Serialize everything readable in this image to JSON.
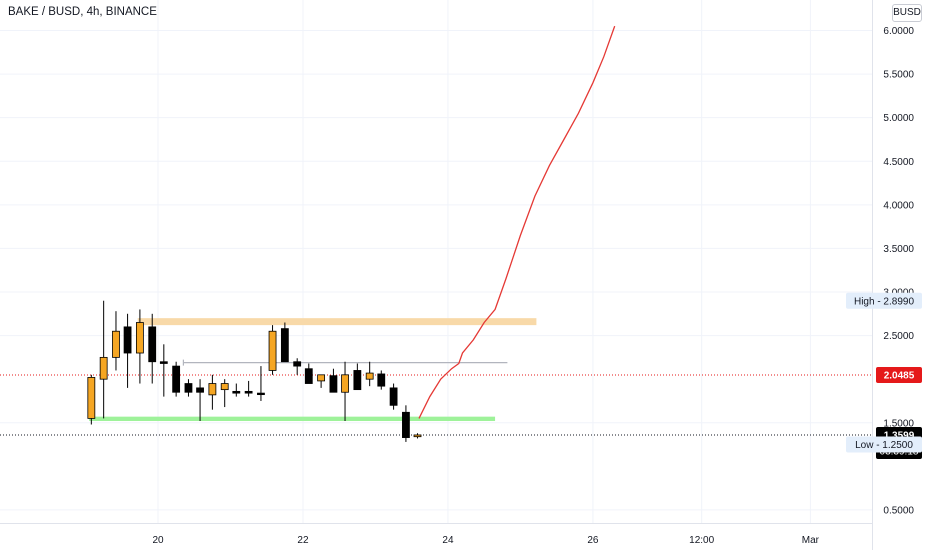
{
  "header": {
    "symbol_title": "BAKE / BUSD, 4h, BINANCE",
    "currency": "BUSD"
  },
  "colors": {
    "bull": "#f5a623",
    "bear": "#000000",
    "resistance_zone": "#f8d9a8",
    "support_zone": "#9ef29a",
    "forecast_line": "#e53935",
    "current_price_tag": "#e5191a",
    "last_price_tag": "#000000",
    "high_low_tag": "#e3eefb"
  },
  "chart_data": {
    "type": "candlestick",
    "title": "BAKE / BUSD, 4h, BINANCE",
    "y_axis": {
      "ticks": [
        "6.0000",
        "5.5000",
        "5.0000",
        "4.5000",
        "4.0000",
        "3.5000",
        "3.0000",
        "2.5000",
        "1.5000",
        "0.5000"
      ],
      "tick_values": [
        6.0,
        5.5,
        5.0,
        4.5,
        4.0,
        3.5,
        3.0,
        2.5,
        1.5,
        0.5
      ],
      "range": [
        0.35,
        6.35
      ]
    },
    "x_axis": {
      "ticks": [
        "20",
        "22",
        "24",
        "26",
        "12:00",
        "Mar"
      ],
      "tick_positions": [
        20,
        22,
        24,
        26,
        27.5,
        29
      ],
      "range": [
        17.82,
        29.85
      ]
    },
    "candles": [
      {
        "t": 19.08,
        "o": 1.55,
        "h": 2.05,
        "l": 1.48,
        "c": 2.02
      },
      {
        "t": 19.25,
        "o": 2.0,
        "h": 2.9,
        "l": 1.55,
        "c": 2.25
      },
      {
        "t": 19.42,
        "o": 2.25,
        "h": 2.78,
        "l": 2.1,
        "c": 2.55
      },
      {
        "t": 19.58,
        "o": 2.6,
        "h": 2.75,
        "l": 1.9,
        "c": 2.3
      },
      {
        "t": 19.75,
        "o": 2.3,
        "h": 2.8,
        "l": 1.95,
        "c": 2.65
      },
      {
        "t": 19.92,
        "o": 2.6,
        "h": 2.75,
        "l": 1.95,
        "c": 2.2
      },
      {
        "t": 20.08,
        "o": 2.2,
        "h": 2.4,
        "l": 1.8,
        "c": 2.18
      },
      {
        "t": 20.25,
        "o": 2.15,
        "h": 2.2,
        "l": 1.8,
        "c": 1.85
      },
      {
        "t": 20.42,
        "o": 1.95,
        "h": 2.0,
        "l": 1.8,
        "c": 1.85
      },
      {
        "t": 20.58,
        "o": 1.9,
        "h": 2.0,
        "l": 1.52,
        "c": 1.85
      },
      {
        "t": 20.75,
        "o": 1.82,
        "h": 2.05,
        "l": 1.65,
        "c": 1.95
      },
      {
        "t": 20.92,
        "o": 1.88,
        "h": 2.0,
        "l": 1.68,
        "c": 1.95
      },
      {
        "t": 21.08,
        "o": 1.86,
        "h": 1.95,
        "l": 1.8,
        "c": 1.84
      },
      {
        "t": 21.25,
        "o": 1.86,
        "h": 1.98,
        "l": 1.8,
        "c": 1.84
      },
      {
        "t": 21.42,
        "o": 1.84,
        "h": 2.15,
        "l": 1.75,
        "c": 1.83
      },
      {
        "t": 21.58,
        "o": 2.1,
        "h": 2.62,
        "l": 2.05,
        "c": 2.55
      },
      {
        "t": 21.75,
        "o": 2.58,
        "h": 2.65,
        "l": 2.2,
        "c": 2.2
      },
      {
        "t": 21.92,
        "o": 2.2,
        "h": 2.24,
        "l": 2.05,
        "c": 2.15
      },
      {
        "t": 22.08,
        "o": 2.12,
        "h": 2.18,
        "l": 1.95,
        "c": 1.95
      },
      {
        "t": 22.25,
        "o": 1.98,
        "h": 2.05,
        "l": 1.9,
        "c": 2.05
      },
      {
        "t": 22.42,
        "o": 2.04,
        "h": 2.12,
        "l": 1.88,
        "c": 1.85
      },
      {
        "t": 22.58,
        "o": 1.85,
        "h": 2.2,
        "l": 1.52,
        "c": 2.05
      },
      {
        "t": 22.75,
        "o": 2.1,
        "h": 2.18,
        "l": 1.88,
        "c": 1.88
      },
      {
        "t": 22.92,
        "o": 2.0,
        "h": 2.2,
        "l": 1.92,
        "c": 2.07
      },
      {
        "t": 23.08,
        "o": 2.06,
        "h": 2.1,
        "l": 1.88,
        "c": 1.92
      },
      {
        "t": 23.25,
        "o": 1.9,
        "h": 1.95,
        "l": 1.65,
        "c": 1.7
      },
      {
        "t": 23.42,
        "o": 1.62,
        "h": 1.7,
        "l": 1.28,
        "c": 1.33
      },
      {
        "t": 23.58,
        "o": 1.34,
        "h": 1.38,
        "l": 1.32,
        "c": 1.36
      }
    ],
    "zones": [
      {
        "name": "resistance",
        "x_from": 19.72,
        "x_to": 25.22,
        "y_from": 2.62,
        "y_to": 2.7
      },
      {
        "name": "support",
        "x_from": 19.05,
        "x_to": 24.65,
        "y_from": 1.52,
        "y_to": 1.57
      }
    ],
    "reference_line": {
      "x_from": 20.35,
      "x_to": 24.82,
      "y": 2.19
    },
    "forecast_path": [
      [
        23.6,
        1.55
      ],
      [
        23.75,
        1.8
      ],
      [
        23.9,
        2.0
      ],
      [
        24.05,
        2.12
      ],
      [
        24.15,
        2.18
      ],
      [
        24.2,
        2.3
      ],
      [
        24.35,
        2.45
      ],
      [
        24.5,
        2.65
      ],
      [
        24.65,
        2.8
      ],
      [
        24.8,
        3.15
      ],
      [
        25.0,
        3.65
      ],
      [
        25.2,
        4.1
      ],
      [
        25.4,
        4.45
      ],
      [
        25.6,
        4.75
      ],
      [
        25.8,
        5.05
      ],
      [
        26.0,
        5.4
      ],
      [
        26.15,
        5.7
      ],
      [
        26.3,
        6.05
      ]
    ],
    "price_tags": [
      {
        "label": "High - 2.8990",
        "value": 2.899,
        "kind": "high"
      },
      {
        "label": "2.0485",
        "value": 2.0485,
        "kind": "current"
      },
      {
        "label": "1.3599",
        "value": 1.3599,
        "kind": "last"
      },
      {
        "label": "03:39:18",
        "kind": "countdown"
      },
      {
        "label": "Low - 1.2500",
        "value": 1.25,
        "kind": "low"
      }
    ],
    "grid": true
  }
}
